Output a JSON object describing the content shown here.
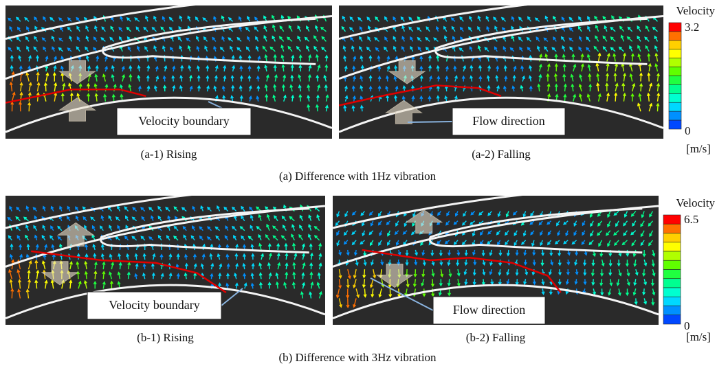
{
  "figure": {
    "groups": [
      {
        "caption": "(a) Difference with 1Hz vibration",
        "panels": [
          {
            "caption": "(a-1) Rising",
            "annotation": "Velocity boundary"
          },
          {
            "caption": "(a-2) Falling",
            "annotation": "Flow direction"
          }
        ],
        "colorbar": {
          "title": "Velocity",
          "max": 3.2,
          "min": 0,
          "unit": "[m/s]"
        }
      },
      {
        "caption": "(b) Difference with 3Hz vibration",
        "panels": [
          {
            "caption": "(b-1) Rising",
            "annotation": "Velocity boundary"
          },
          {
            "caption": "(b-2) Falling",
            "annotation": "Flow direction"
          }
        ],
        "colorbar": {
          "title": "Velocity",
          "max": 6.5,
          "min": 0,
          "unit": "[m/s]"
        }
      }
    ]
  }
}
